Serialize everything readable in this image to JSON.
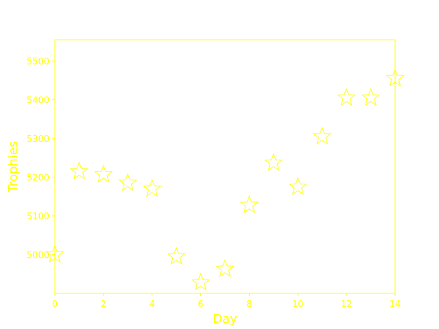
{
  "chart_data": {
    "type": "scatter",
    "title": "",
    "xlabel": "Day",
    "ylabel": "Trophies",
    "xlim": [
      0,
      14
    ],
    "ylim": [
      4900,
      5555
    ],
    "xticks": [
      0,
      2,
      4,
      6,
      8,
      10,
      12,
      14
    ],
    "yticks": [
      5000,
      5100,
      5200,
      5300,
      5400,
      5500
    ],
    "grid": false,
    "marker": "star-outline",
    "color": "#ffff00",
    "points": [
      {
        "x": 0,
        "y": 5000
      },
      {
        "x": 1,
        "y": 5215
      },
      {
        "x": 2,
        "y": 5207
      },
      {
        "x": 3,
        "y": 5185
      },
      {
        "x": 4,
        "y": 5170
      },
      {
        "x": 5,
        "y": 4995
      },
      {
        "x": 6,
        "y": 4928
      },
      {
        "x": 7,
        "y": 4963
      },
      {
        "x": 8,
        "y": 5128
      },
      {
        "x": 9,
        "y": 5237
      },
      {
        "x": 10,
        "y": 5175
      },
      {
        "x": 11,
        "y": 5305
      },
      {
        "x": 12,
        "y": 5405
      },
      {
        "x": 13,
        "y": 5405
      },
      {
        "x": 14,
        "y": 5455
      }
    ]
  }
}
